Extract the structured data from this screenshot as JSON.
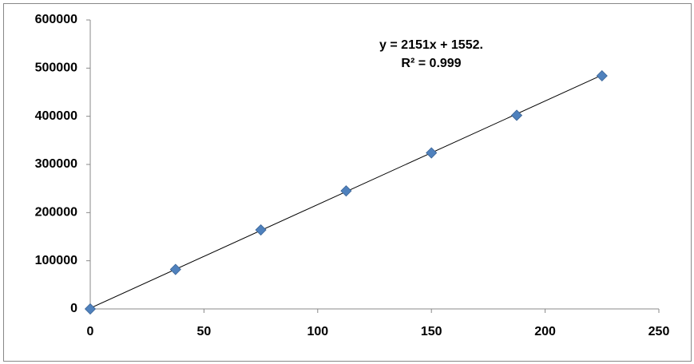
{
  "chart_data": {
    "type": "scatter",
    "annotations": [
      "y = 2151x + 1552.",
      "R² = 0.999"
    ],
    "series": [
      {
        "color": "#4f81bd",
        "x": [
          0,
          37.5,
          75,
          112.5,
          150,
          187.5,
          225
        ],
        "values": [
          0,
          82000,
          164000,
          245000,
          324000,
          402000,
          484000
        ]
      }
    ],
    "trendline": {
      "slope": 2151,
      "intercept": 1552,
      "color": "#000000"
    },
    "xlim": [
      0,
      250
    ],
    "xticks": [
      0,
      50,
      100,
      150,
      200,
      250
    ],
    "ylim": [
      0,
      600000
    ],
    "yticks": [
      0,
      100000,
      200000,
      300000,
      400000,
      500000,
      600000
    ],
    "grid": false
  }
}
